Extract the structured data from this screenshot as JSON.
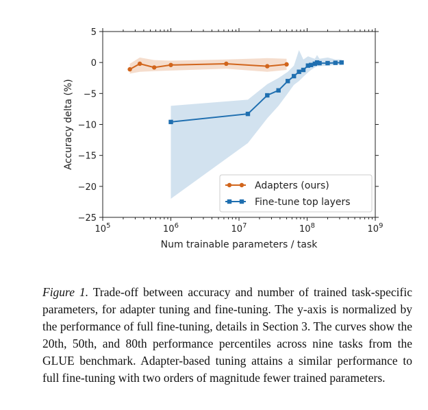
{
  "chart_data": {
    "type": "line",
    "xscale": "log",
    "xlabel": "Num trainable parameters / task",
    "ylabel": "Accuracy delta (%)",
    "xlim": [
      100000,
      1000000000
    ],
    "ylim": [
      -25,
      5
    ],
    "xticks": [
      {
        "value": 100000,
        "base": "10",
        "exp": "5"
      },
      {
        "value": 1000000,
        "base": "10",
        "exp": "6"
      },
      {
        "value": 10000000,
        "base": "10",
        "exp": "7"
      },
      {
        "value": 100000000,
        "base": "10",
        "exp": "8"
      },
      {
        "value": 1000000000,
        "base": "10",
        "exp": "9"
      }
    ],
    "yticks": [
      {
        "value": 5,
        "label": "5"
      },
      {
        "value": 0,
        "label": "0"
      },
      {
        "value": -5,
        "label": "−5"
      },
      {
        "value": -10,
        "label": "−10"
      },
      {
        "value": -15,
        "label": "−15"
      },
      {
        "value": -20,
        "label": "−20"
      },
      {
        "value": -25,
        "label": "−25"
      }
    ],
    "legend_position": "lower-right",
    "series": [
      {
        "name": "Adapters (ours)",
        "color": "#d1651c",
        "marker": "circle",
        "x": [
          250000,
          350000,
          570000,
          1000000,
          6500000,
          26000000,
          50000000
        ],
        "y": [
          -1.1,
          -0.2,
          -0.8,
          -0.4,
          -0.2,
          -0.6,
          -0.3
        ],
        "band_low": [
          -1.8,
          -1.5,
          -1.4,
          -1.3,
          -1.0,
          -1.5,
          -1.2
        ],
        "band_high": [
          -0.2,
          0.8,
          0.4,
          0.3,
          0.5,
          0.7,
          0.6
        ]
      },
      {
        "name": "Fine-tune top layers",
        "color": "#1f6fb0",
        "marker": "square",
        "x": [
          1000000,
          13500000,
          26000000,
          38000000,
          52000000,
          64000000,
          76000000,
          88000000,
          103000000,
          114000000,
          130000000,
          140000000,
          152000000,
          200000000,
          260000000,
          320000000
        ],
        "y": [
          -9.6,
          -8.3,
          -5.3,
          -4.5,
          -3.0,
          -2.2,
          -1.5,
          -1.2,
          -0.5,
          -0.4,
          -0.2,
          0.0,
          -0.1,
          -0.1,
          -0.05,
          0.0
        ],
        "band_low": [
          -22.0,
          -13.0,
          -9.0,
          -7.0,
          -5.0,
          -3.6,
          -3.0,
          -2.3,
          -1.6,
          -1.2,
          -0.8,
          -0.6,
          -0.6,
          -0.5,
          -0.4,
          -0.4
        ],
        "band_high": [
          -7.0,
          -6.0,
          -3.5,
          -2.5,
          -1.5,
          -0.5,
          2.0,
          0.5,
          1.0,
          0.8,
          0.6,
          1.2,
          0.6,
          0.8,
          0.5,
          0.5
        ]
      }
    ]
  },
  "caption": {
    "label": "Figure 1.",
    "text": "Trade-off between accuracy and number of trained task-specific parameters, for adapter tuning and fine-tuning. The y-axis is normalized by the performance of full fine-tuning, details in Section 3. The curves show the 20th, 50th, and 80th performance percentiles across nine tasks from the GLUE benchmark. Adapter-based tuning attains a similar performance to full fine-tuning with two orders of magnitude fewer trained parameters."
  }
}
